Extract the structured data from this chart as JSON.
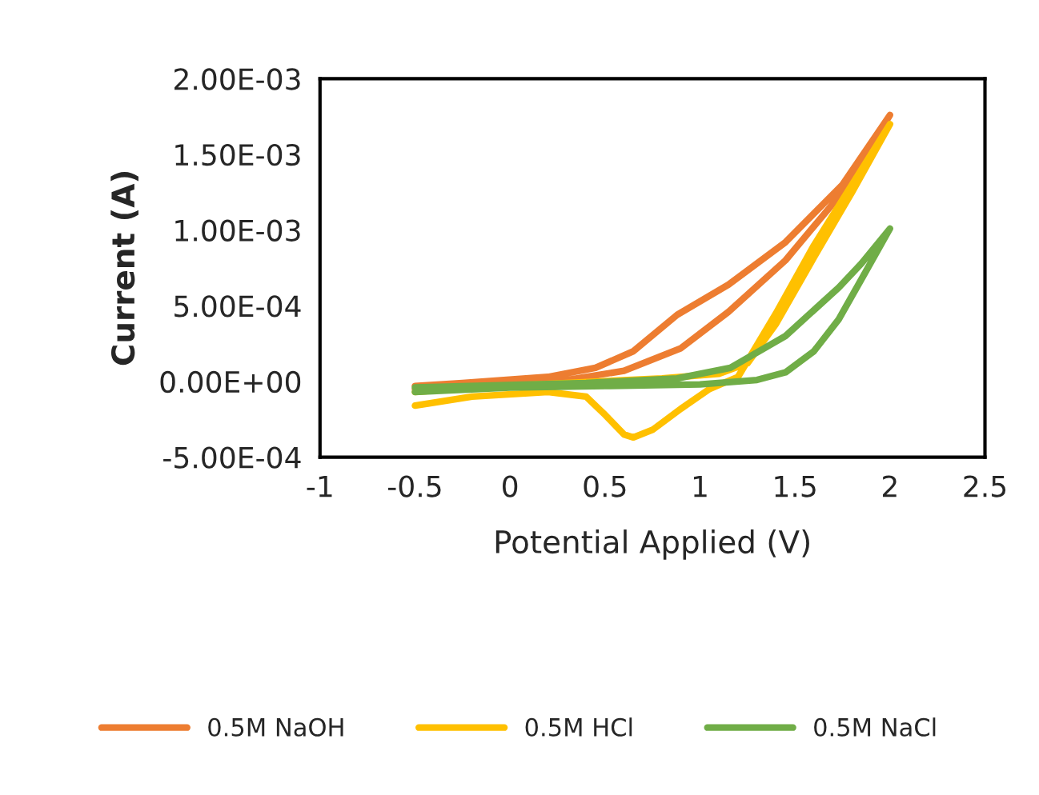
{
  "chart_data": {
    "type": "line",
    "xlabel": "Potential Applied (V)",
    "ylabel": "Current (A)",
    "xlim": [
      -1,
      2.5
    ],
    "xticks": [
      -1,
      -0.5,
      0,
      0.5,
      1,
      1.5,
      2,
      2.5
    ],
    "ylim": [
      -0.0005,
      0.002
    ],
    "yticks": [
      {
        "value": -0.0005,
        "label": "-5.00E-04"
      },
      {
        "value": 0,
        "label": "0.00E+00"
      },
      {
        "value": 0.0005,
        "label": "5.00E-04"
      },
      {
        "value": 0.001,
        "label": "1.00E-03"
      },
      {
        "value": 0.0015,
        "label": "1.50E-03"
      },
      {
        "value": 0.002,
        "label": "2.00E-03"
      }
    ],
    "grid": false,
    "legend": "bottom",
    "marker": "none",
    "line_style": "solid",
    "series": [
      {
        "name": "0.5M NaOH",
        "color": "#ed7d31",
        "x": [
          -0.5,
          0,
          0.3,
          0.6,
          0.9,
          1.15,
          1.45,
          1.75,
          2.0,
          1.75,
          1.45,
          1.15,
          0.88,
          0.65,
          0.45,
          0.2,
          -0.25,
          -0.5
        ],
        "values": [
          -5e-05,
          -1e-05,
          1e-05,
          7e-05,
          0.00022,
          0.00046,
          0.0008,
          0.00125,
          0.00176,
          0.0013,
          0.00092,
          0.00064,
          0.00044,
          0.0002,
          9e-05,
          3e-05,
          -1e-05,
          -3e-05
        ]
      },
      {
        "name": "0.5M HCl",
        "color": "#ffc000",
        "x": [
          -0.5,
          -0.2,
          0.2,
          0.4,
          0.5,
          0.6,
          0.65,
          0.75,
          0.9,
          1.05,
          1.2,
          1.4,
          1.6,
          1.8,
          2.0,
          1.8,
          1.6,
          1.4,
          1.25,
          1.1,
          0.8,
          0.3,
          -0.2,
          -0.5
        ],
        "values": [
          -0.00016,
          -0.0001,
          -7e-05,
          -0.0001,
          -0.00022,
          -0.00035,
          -0.00037,
          -0.00032,
          -0.00018,
          -5e-05,
          3e-05,
          0.00045,
          0.0009,
          0.0013,
          0.0017,
          0.00125,
          0.00082,
          0.00038,
          0.00012,
          5e-05,
          2e-05,
          -1e-05,
          -4e-05,
          -7e-05
        ]
      },
      {
        "name": "0.5M NaCl",
        "color": "#70ad47",
        "x": [
          -0.5,
          0,
          0.5,
          1.0,
          1.3,
          1.45,
          1.6,
          1.73,
          1.87,
          2.0,
          1.85,
          1.73,
          1.45,
          1.16,
          0.88,
          0.4,
          -0.5
        ],
        "values": [
          -7e-05,
          -4e-05,
          -3e-05,
          -2e-05,
          1e-05,
          6e-05,
          0.0002,
          0.00041,
          0.00072,
          0.00101,
          0.00078,
          0.00062,
          0.0003,
          9e-05,
          2e-05,
          -1e-05,
          -4e-05
        ]
      }
    ]
  }
}
